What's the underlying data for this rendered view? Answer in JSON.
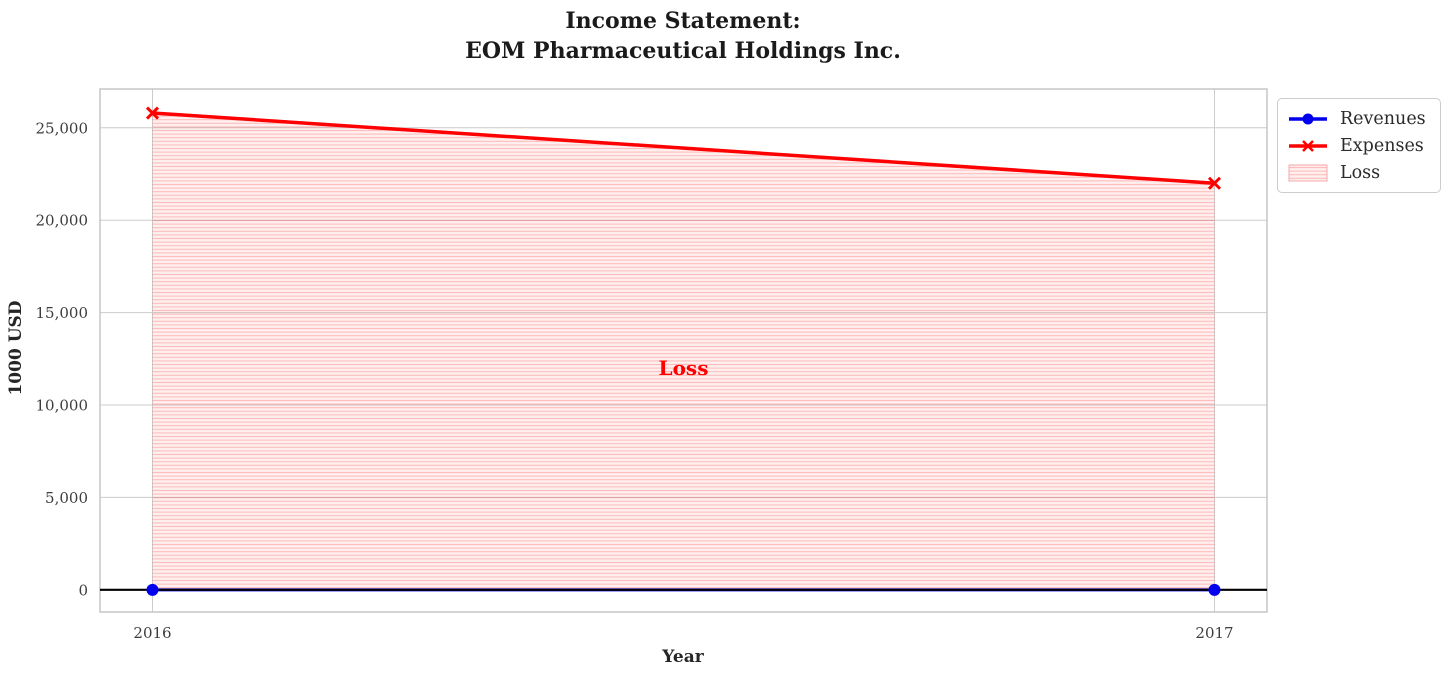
{
  "chart_data": {
    "type": "line",
    "title": "Income Statement:\nEOM Pharmaceutical Holdings Inc.",
    "xlabel": "Year",
    "ylabel": "1000 USD",
    "x": [
      2016,
      2017
    ],
    "xtick_labels": [
      "2016",
      "2017"
    ],
    "series": [
      {
        "name": "Revenues",
        "color": "#0000ee",
        "marker": "circle",
        "line_width": 3,
        "values": [
          0,
          0
        ]
      },
      {
        "name": "Expenses",
        "color": "#ff0000",
        "marker": "x",
        "line_width": 3.5,
        "values": [
          25800,
          22000
        ]
      }
    ],
    "loss_area": {
      "label": "Loss",
      "between": [
        "Revenues",
        "Expenses"
      ],
      "annotation": {
        "text": "Loss",
        "x": 2016.5,
        "y": 12000
      }
    },
    "yticks": [
      0,
      5000,
      10000,
      15000,
      20000,
      25000
    ],
    "ytick_labels": [
      "0",
      "5,000",
      "10,000",
      "15,000",
      "20,000",
      "25,000"
    ],
    "ylim": [
      -1200,
      27100
    ],
    "zero_line": true,
    "grid": true,
    "legend": {
      "position": "upper-right-outside",
      "items": [
        "Revenues",
        "Expenses",
        "Loss"
      ]
    },
    "colors": {
      "revenues": "#0000ee",
      "expenses": "#ff0000",
      "loss_fill_base": "rgba(255,0,0,0.06)",
      "loss_hatch_line": "rgba(255,60,60,0.30)",
      "grid": "#cccccc",
      "spine": "#c2c2c2",
      "zero_line": "#000000",
      "annotation": "#ff0000",
      "tick_text": "#3d3d3d",
      "title_text": "#1a1a1a"
    }
  }
}
